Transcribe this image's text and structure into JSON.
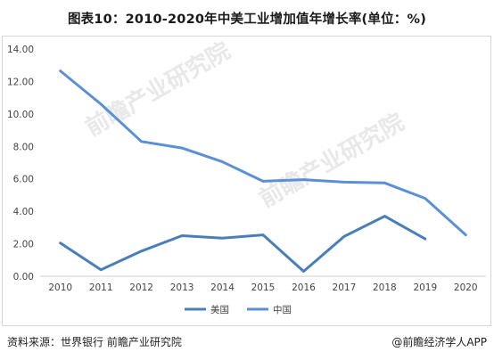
{
  "header": {
    "title": "图表10：2010-2020年中美工业增加值年增长率(单位：%)"
  },
  "footer": {
    "source": "资料来源：世界银行  前瞻产业研究院",
    "brand": "@前瞻经济学人APP"
  },
  "watermark": {
    "text": "前瞻产业研究院"
  },
  "chart_data": {
    "type": "line",
    "title": "图表10：2010-2020年中美工业增加值年增长率(单位：%)",
    "xlabel": "",
    "ylabel": "",
    "x": [
      "2010",
      "2011",
      "2012",
      "2013",
      "2014",
      "2015",
      "2016",
      "2017",
      "2018",
      "2019",
      "2020"
    ],
    "yticks": [
      "0.00",
      "2.00",
      "4.00",
      "6.00",
      "8.00",
      "10.00",
      "12.00",
      "14.00"
    ],
    "ylim": [
      0,
      14
    ],
    "grid": false,
    "legend_position": "bottom",
    "series": [
      {
        "name": "美国",
        "color": "#4a7ebb",
        "values": [
          2.05,
          0.4,
          1.55,
          2.5,
          2.35,
          2.55,
          0.3,
          2.45,
          3.7,
          2.3,
          null
        ]
      },
      {
        "name": "中国",
        "color": "#5b8fd6",
        "values": [
          12.65,
          10.6,
          8.3,
          7.9,
          7.05,
          5.85,
          5.95,
          5.8,
          5.75,
          4.8,
          2.55
        ]
      }
    ]
  }
}
